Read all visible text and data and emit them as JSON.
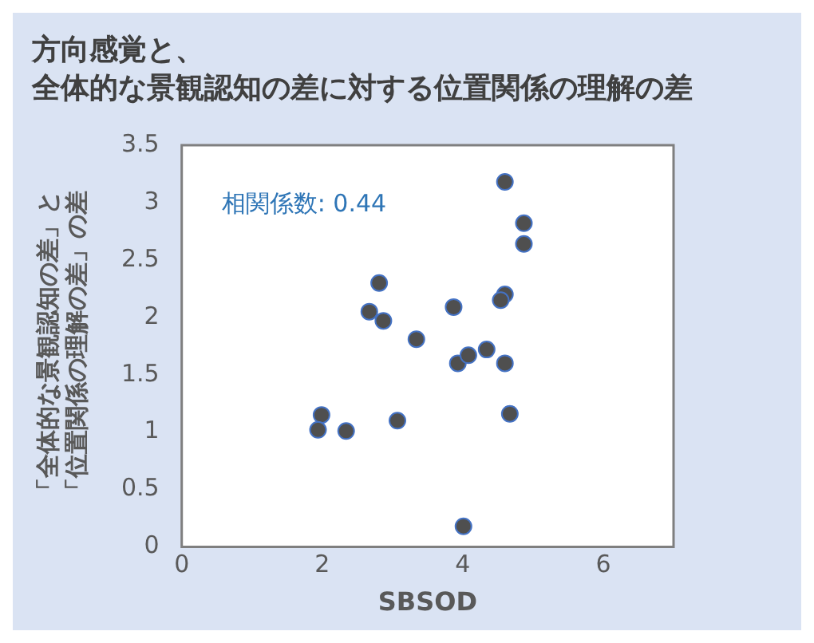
{
  "chart_data": {
    "type": "scatter",
    "title": "方向感覚と、全体的な景観認知の差に対する位置関係の理解の差",
    "xlabel": "SBSOD",
    "ylabel": "「全体的な景観認知の差」と「位置関係の理解の差」の差",
    "annotations": [
      "相関係数: 0.44"
    ],
    "series": [
      {
        "color": "#4f4f4f",
        "x": [
          4.6,
          4.87,
          4.87,
          2.81,
          2.67,
          2.87,
          3.34,
          3.87,
          4.6,
          4.54,
          3.93,
          4.08,
          4.34,
          4.6,
          1.99,
          1.94,
          2.34,
          3.07,
          4.67,
          4.01
        ],
        "values": [
          3.18,
          2.82,
          2.64,
          2.3,
          2.05,
          1.97,
          1.81,
          2.09,
          2.2,
          2.15,
          1.6,
          1.67,
          1.72,
          1.6,
          1.15,
          1.02,
          1.01,
          1.1,
          1.16,
          0.18
        ]
      }
    ],
    "xlim": [
      0,
      7
    ],
    "xticks": [
      0,
      2,
      4,
      6
    ],
    "ylim": [
      0,
      3.5
    ],
    "yticks": [
      0,
      0.5,
      1,
      1.5,
      2,
      2.5,
      3,
      3.5
    ],
    "grid": false,
    "legend": false,
    "marker": "circle"
  }
}
